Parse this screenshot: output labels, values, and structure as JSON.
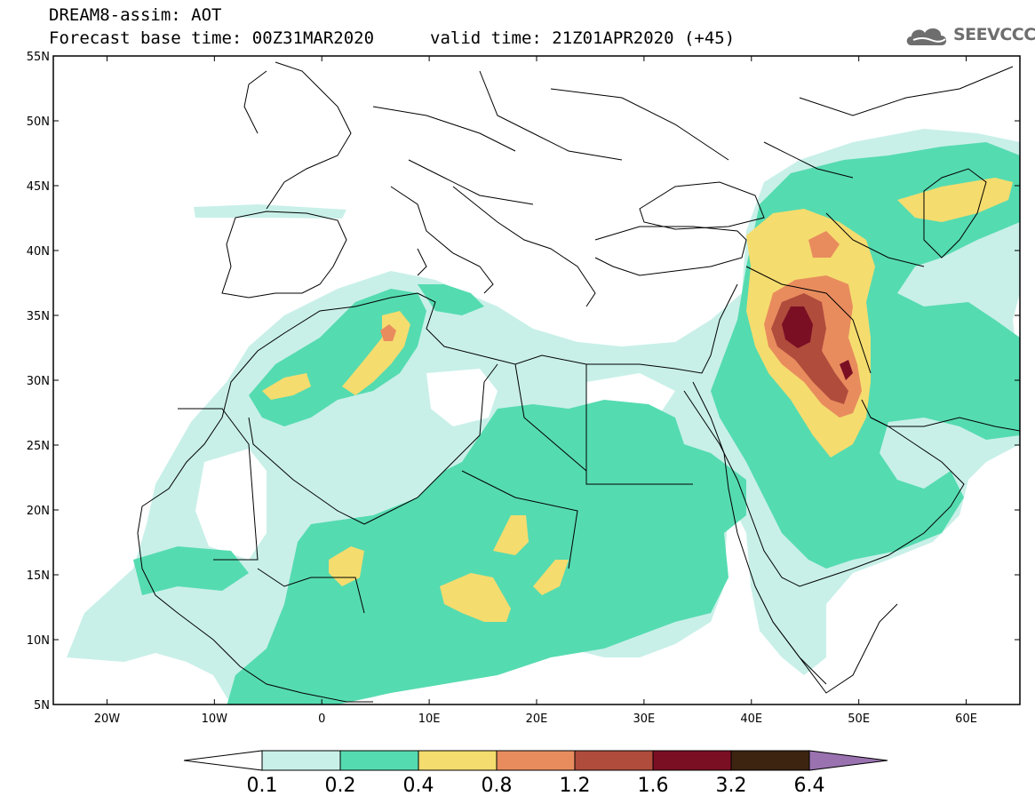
{
  "header": {
    "title": "DREAM8-assim: AOT",
    "base_time": "Forecast base time: 00Z31MAR2020",
    "valid_time": "valid time: 21Z01APR2020 (+45)",
    "logo_text": "SEEVCCC",
    "logo_icon": "cloud-icon"
  },
  "map": {
    "lon_range": [
      -25,
      65
    ],
    "lat_range": [
      5,
      55
    ],
    "lat_labels": [
      "55N",
      "50N",
      "45N",
      "40N",
      "35N",
      "30N",
      "25N",
      "20N",
      "15N",
      "10N",
      "5N"
    ],
    "lon_labels": [
      "20W",
      "10W",
      "0",
      "10E",
      "20E",
      "30E",
      "40E",
      "50E",
      "60E"
    ],
    "field": "Aerosol Optical Thickness"
  },
  "colorbar": {
    "labels": [
      "0.1",
      "0.2",
      "0.4",
      "0.8",
      "1.2",
      "1.6",
      "3.2",
      "6.4"
    ],
    "colors": [
      "#c8f0e8",
      "#55dbb0",
      "#f5dc6e",
      "#e88c5e",
      "#b04c3c",
      "#7a0f24",
      "#3c2410",
      "#9a72b0"
    ]
  }
}
